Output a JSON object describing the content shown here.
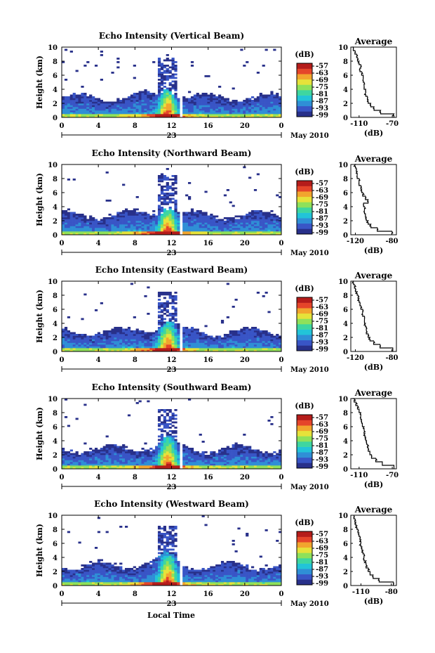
{
  "chart_data": {
    "type": "heatmap",
    "xlabel": "Local Time",
    "date_label": "May 2010",
    "day_label": "23",
    "x_ticks": [
      "0",
      "4",
      "8",
      "12",
      "16",
      "20",
      "0"
    ],
    "xlim": [
      0,
      24
    ],
    "ylabel": "Height (km)",
    "y_ticks": [
      "0",
      "2",
      "4",
      "6",
      "8",
      "10"
    ],
    "ylim": [
      0,
      10
    ],
    "colorbar_label": "(dB)",
    "colorbar_ticks": [
      "-57",
      "-63",
      "-69",
      "-75",
      "-81",
      "-87",
      "-93",
      "-99"
    ],
    "data_gap_hours": [
      12.8,
      13.3
    ],
    "colormap": [
      "#28308a",
      "#3955c6",
      "#2f8fd6",
      "#22c4d8",
      "#3ed6a0",
      "#8fe15a",
      "#e6e23a",
      "#f2a52e",
      "#e5452a",
      "#b51c1a"
    ],
    "avg_ylabel": "(dB)",
    "panels": [
      {
        "title": "Echo Intensity (Vertical Beam)",
        "avg_title": "Average",
        "avg_xticks": [
          "-110",
          "-70"
        ],
        "avg_xlim": [
          -120,
          -65
        ],
        "avg_profile": {
          "height_km": [
            0,
            0.5,
            1,
            1.5,
            2,
            2.5,
            3,
            3.5,
            4,
            4.5,
            5,
            5.5,
            6,
            6.5,
            7,
            7.5,
            8,
            8.5,
            9,
            9.5,
            10
          ],
          "db": [
            -68,
            -84,
            -92,
            -96,
            -99,
            -100,
            -102,
            -102,
            -104,
            -104,
            -105,
            -105,
            -107,
            -109,
            -108,
            -110,
            -112,
            -113,
            -115,
            -117,
            -118
          ]
        }
      },
      {
        "title": "Echo Intensity (Northward Beam)",
        "avg_title": "Average",
        "avg_xticks": [
          "-120",
          "-80"
        ],
        "avg_xlim": [
          -125,
          -75
        ],
        "avg_profile": {
          "height_km": [
            0,
            0.5,
            1,
            1.5,
            2,
            2.5,
            3,
            3.5,
            4,
            4.5,
            5,
            5.5,
            6,
            6.5,
            7,
            7.5,
            8,
            8.5,
            9,
            9.5,
            10
          ],
          "db": [
            -80,
            -96,
            -103,
            -106,
            -108,
            -109,
            -110,
            -110,
            -111,
            -106,
            -109,
            -112,
            -113,
            -114,
            -116,
            -116,
            -118,
            -118,
            -119,
            -120,
            -121
          ]
        }
      },
      {
        "title": "Echo Intensity (Eastward Beam)",
        "avg_title": "Average",
        "avg_xticks": [
          "-120",
          "-80"
        ],
        "avg_xlim": [
          -125,
          -75
        ],
        "avg_profile": {
          "height_km": [
            0,
            0.5,
            1,
            1.5,
            2,
            2.5,
            3,
            3.5,
            4,
            4.5,
            5,
            5.5,
            6,
            6.5,
            7,
            7.5,
            8,
            8.5,
            9,
            9.5,
            10
          ],
          "db": [
            -79,
            -93,
            -100,
            -104,
            -106,
            -108,
            -108,
            -109,
            -110,
            -110,
            -112,
            -112,
            -114,
            -115,
            -116,
            -117,
            -118,
            -120,
            -121,
            -122,
            -123
          ]
        }
      },
      {
        "title": "Echo Intensity (Southward Beam)",
        "avg_title": "Average",
        "avg_xticks": [
          "-110",
          "-70"
        ],
        "avg_xlim": [
          -120,
          -65
        ],
        "avg_profile": {
          "height_km": [
            0,
            0.5,
            1,
            1.5,
            2,
            2.5,
            3,
            3.5,
            4,
            4.5,
            5,
            5.5,
            6,
            6.5,
            7,
            7.5,
            8,
            8.5,
            9,
            9.5,
            10
          ],
          "db": [
            -68,
            -82,
            -90,
            -95,
            -97,
            -99,
            -100,
            -101,
            -102,
            -103,
            -104,
            -104,
            -106,
            -107,
            -108,
            -108,
            -110,
            -112,
            -114,
            -116,
            -118
          ]
        }
      },
      {
        "title": "Echo Intensity (Westward Beam)",
        "avg_title": "Average",
        "avg_xticks": [
          "-110",
          "-80"
        ],
        "avg_xlim": [
          -120,
          -75
        ],
        "avg_profile": {
          "height_km": [
            0,
            0.5,
            1,
            1.5,
            2,
            2.5,
            3,
            3.5,
            4,
            4.5,
            5,
            5.5,
            6,
            6.5,
            7,
            7.5,
            8,
            8.5,
            9,
            9.5,
            10
          ],
          "db": [
            -78,
            -92,
            -98,
            -101,
            -103,
            -105,
            -105,
            -107,
            -107,
            -108,
            -109,
            -110,
            -110,
            -111,
            -112,
            -113,
            -114,
            -115,
            -116,
            -117,
            -117
          ]
        }
      }
    ]
  }
}
